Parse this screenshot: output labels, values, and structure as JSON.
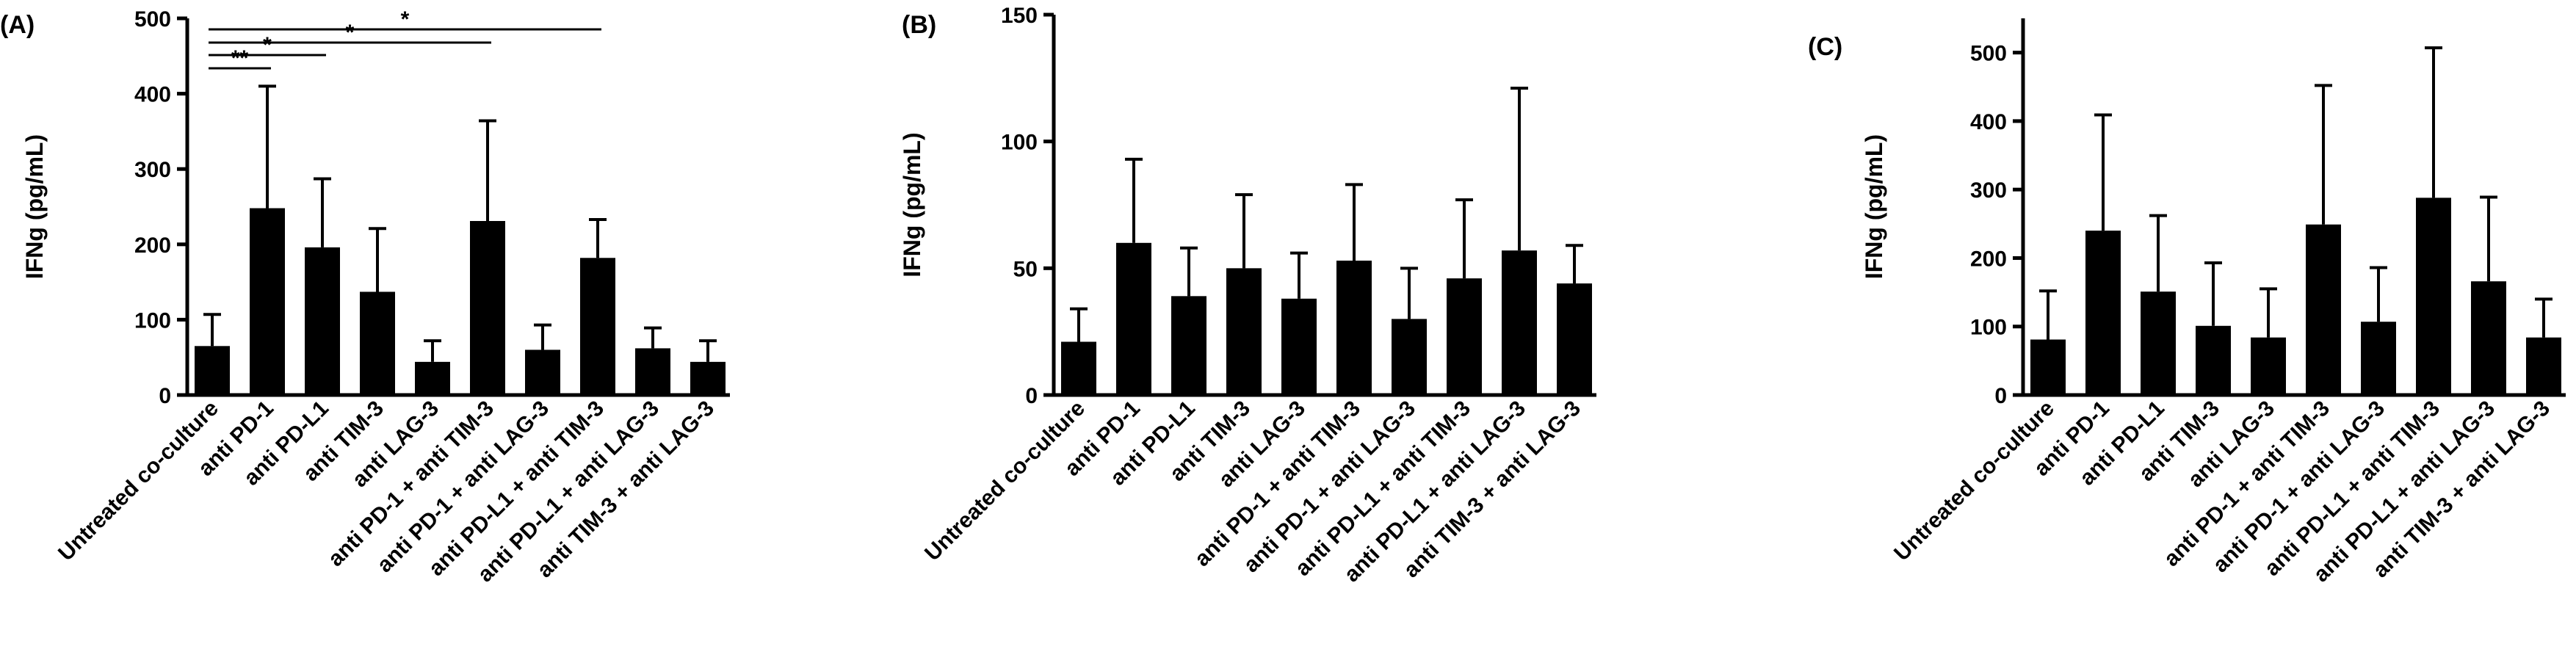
{
  "chart_data": [
    {
      "type": "bar",
      "panel_label": "(A)",
      "ylabel": "IFNg (pg/mL)",
      "xlabel": "",
      "ylim": [
        0,
        500
      ],
      "yticks": [
        0,
        100,
        200,
        300,
        400,
        500
      ],
      "ytick_labels": [
        "0",
        "100",
        "200",
        "300",
        "400",
        "500"
      ],
      "categories": [
        "Untreated co-culture",
        "anti PD-1",
        "anti PD-L1",
        "anti TIM-3",
        "anti LAG-3",
        "anti PD-1 + anti TIM-3",
        "anti PD-1 + anti LAG-3",
        "anti PD-L1 + anti TIM-3",
        "anti PD-L1 + anti LAG-3",
        "anti TIM-3 + anti LAG-3"
      ],
      "values": [
        65,
        248,
        196,
        137,
        44,
        231,
        60,
        182,
        62,
        44
      ],
      "errors": [
        42,
        162,
        91,
        84,
        28,
        133,
        33,
        51,
        27,
        28
      ],
      "significance": [
        {
          "from": 0,
          "to": 1,
          "label": "**"
        },
        {
          "from": 0,
          "to": 2,
          "label": "*"
        },
        {
          "from": 0,
          "to": 5,
          "label": "*"
        },
        {
          "from": 0,
          "to": 7,
          "label": "*"
        }
      ]
    },
    {
      "type": "bar",
      "panel_label": "(B)",
      "ylabel": "IFNg (pg/mL)",
      "xlabel": "",
      "ylim": [
        0,
        150
      ],
      "yticks": [
        0,
        50,
        100,
        150
      ],
      "ytick_labels": [
        "0",
        "50",
        "100",
        "150"
      ],
      "categories": [
        "Untreated co-culture",
        "anti PD-1",
        "anti PD-L1",
        "anti TIM-3",
        "anti LAG-3",
        "anti PD-1 + anti TIM-3",
        "anti PD-1 + anti LAG-3",
        "anti PD-L1 + anti TIM-3",
        "anti PD-L1 + anti LAG-3",
        "anti TIM-3 + anti LAG-3"
      ],
      "values": [
        21,
        60,
        39,
        50,
        38,
        53,
        30,
        46,
        57,
        44
      ],
      "errors": [
        13,
        33,
        19,
        29,
        18,
        30,
        20,
        31,
        64,
        15
      ],
      "significance": []
    },
    {
      "type": "bar",
      "panel_label": "(C)",
      "ylabel": "IFNg (pg/mL)",
      "xlabel": "",
      "ylim": [
        0,
        550
      ],
      "yticks": [
        0,
        100,
        200,
        300,
        400,
        500
      ],
      "ytick_labels": [
        "0",
        "100",
        "200",
        "300",
        "400",
        "500"
      ],
      "categories": [
        "Untreated co-culture",
        "anti PD-1",
        "anti PD-L1",
        "anti TIM-3",
        "anti LAG-3",
        "anti PD-1 + anti TIM-3",
        "anti PD-1 + anti LAG-3",
        "anti PD-L1 + anti TIM-3",
        "anti PD-L1 + anti LAG-3",
        "anti TIM-3 + anti LAG-3"
      ],
      "values": [
        81,
        240,
        151,
        101,
        84,
        249,
        107,
        288,
        166,
        84
      ],
      "errors": [
        71,
        169,
        111,
        92,
        71,
        203,
        79,
        219,
        123,
        56
      ],
      "significance": []
    }
  ]
}
